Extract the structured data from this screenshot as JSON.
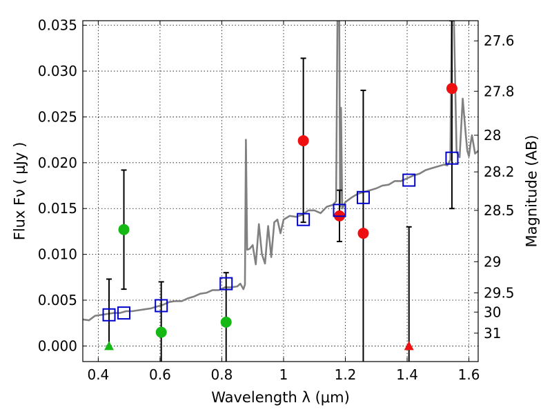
{
  "chart_data": {
    "type": "scatter",
    "xlabel": "Wavelength  λ (μm)",
    "ylabel_left": "Flux  Fν  ( μJy )",
    "ylabel_right": "Magnitude (AB)",
    "xlim": [
      0.35,
      1.63
    ],
    "ylim": [
      -0.0017,
      0.0355
    ],
    "grid": true,
    "x_ticks": [
      0.4,
      0.6,
      0.8,
      1.0,
      1.2,
      1.4,
      1.6
    ],
    "x_tick_labels": [
      "0.4",
      "0.6",
      "0.8",
      "1",
      "1.2",
      "1.4",
      "1.6"
    ],
    "y_ticks": [
      0.0,
      0.005,
      0.01,
      0.015,
      0.02,
      0.025,
      0.03,
      0.035
    ],
    "y_tick_labels": [
      "0.000",
      "0.005",
      "0.010",
      "0.015",
      "0.020",
      "0.025",
      "0.030",
      "0.035"
    ],
    "right_ticks": [
      {
        "label": "27.6",
        "flux": 0.0333
      },
      {
        "label": "27.8",
        "flux": 0.0278
      },
      {
        "label": "28",
        "flux": 0.023
      },
      {
        "label": "28.2",
        "flux": 0.019
      },
      {
        "label": "28.5",
        "flux": 0.0148
      },
      {
        "label": "29",
        "flux": 0.0092
      },
      {
        "label": "29.5",
        "flux": 0.0058
      },
      {
        "label": "30",
        "flux": 0.0037
      },
      {
        "label": "31",
        "flux": 0.0014
      }
    ],
    "model_spectrum": {
      "name": "model SED",
      "color": "#808080",
      "x": [
        0.35,
        0.37,
        0.39,
        0.41,
        0.43,
        0.45,
        0.47,
        0.49,
        0.51,
        0.53,
        0.55,
        0.57,
        0.59,
        0.61,
        0.63,
        0.65,
        0.67,
        0.69,
        0.71,
        0.73,
        0.75,
        0.77,
        0.79,
        0.81,
        0.83,
        0.85,
        0.86,
        0.87,
        0.875,
        0.878,
        0.882,
        0.89,
        0.9,
        0.91,
        0.92,
        0.93,
        0.94,
        0.95,
        0.96,
        0.97,
        0.98,
        0.99,
        1.0,
        1.02,
        1.04,
        1.06,
        1.08,
        1.1,
        1.12,
        1.14,
        1.16,
        1.17,
        1.175,
        1.18,
        1.183,
        1.186,
        1.19,
        1.2,
        1.22,
        1.24,
        1.26,
        1.28,
        1.3,
        1.32,
        1.34,
        1.36,
        1.38,
        1.4,
        1.42,
        1.44,
        1.46,
        1.48,
        1.5,
        1.52,
        1.53,
        1.54,
        1.545,
        1.55,
        1.56,
        1.57,
        1.58,
        1.59,
        1.595,
        1.6,
        1.605,
        1.61,
        1.62,
        1.63
      ],
      "y": [
        0.0029,
        0.0028,
        0.0033,
        0.0034,
        0.0035,
        0.0036,
        0.0036,
        0.0038,
        0.0038,
        0.0039,
        0.004,
        0.0041,
        0.0043,
        0.0045,
        0.0048,
        0.0049,
        0.0049,
        0.0052,
        0.0054,
        0.0057,
        0.0058,
        0.0061,
        0.0061,
        0.0064,
        0.0064,
        0.0065,
        0.0068,
        0.0062,
        0.0067,
        0.0225,
        0.0105,
        0.0106,
        0.011,
        0.0089,
        0.0133,
        0.01,
        0.009,
        0.0131,
        0.0097,
        0.0135,
        0.0138,
        0.0123,
        0.0138,
        0.0142,
        0.0141,
        0.0143,
        0.0148,
        0.0148,
        0.0145,
        0.0152,
        0.0154,
        0.0158,
        0.038,
        0.038,
        0.0152,
        0.026,
        0.015,
        0.0157,
        0.0162,
        0.0166,
        0.0168,
        0.017,
        0.0172,
        0.0175,
        0.0176,
        0.018,
        0.018,
        0.0183,
        0.0186,
        0.0188,
        0.0192,
        0.0194,
        0.0196,
        0.0198,
        0.0197,
        0.0203,
        0.038,
        0.038,
        0.0212,
        0.0206,
        0.027,
        0.023,
        0.0213,
        0.0207,
        0.022,
        0.023,
        0.021,
        0.0213
      ]
    },
    "error_bars": [
      {
        "x": 0.435,
        "low": 0.0,
        "high": 0.0073
      },
      {
        "x": 0.483,
        "low": 0.0062,
        "high": 0.0192
      },
      {
        "x": 0.604,
        "low": -0.0017,
        "high": 0.007
      },
      {
        "x": 0.814,
        "low": -0.0017,
        "high": 0.008
      },
      {
        "x": 1.064,
        "low": 0.0135,
        "high": 0.0314
      },
      {
        "x": 1.181,
        "low": 0.0114,
        "high": 0.017
      },
      {
        "x": 1.258,
        "low": -0.0017,
        "high": 0.0279
      },
      {
        "x": 1.406,
        "low": -0.0017,
        "high": 0.013
      },
      {
        "x": 1.545,
        "low": 0.015,
        "high": 0.0355
      }
    ],
    "series": [
      {
        "name": "green detections",
        "marker": "circle",
        "color": "#16b816",
        "x": [
          0.483,
          0.604,
          0.814
        ],
        "y": [
          0.0127,
          0.0015,
          0.0026
        ]
      },
      {
        "name": "green upper limit",
        "marker": "triangle",
        "color": "#16b816",
        "x": [
          0.435
        ],
        "y": [
          0.0
        ]
      },
      {
        "name": "red detections",
        "marker": "circle",
        "color": "#ee1010",
        "x": [
          1.064,
          1.181,
          1.258,
          1.545
        ],
        "y": [
          0.0224,
          0.0142,
          0.0123,
          0.0281
        ]
      },
      {
        "name": "red upper limit",
        "marker": "triangle",
        "color": "#ee1010",
        "x": [
          1.406
        ],
        "y": [
          0.0
        ]
      },
      {
        "name": "model photometry",
        "marker": "open-square",
        "color": "#0000cc",
        "x": [
          0.435,
          0.483,
          0.604,
          0.814,
          1.064,
          1.181,
          1.258,
          1.406,
          1.545
        ],
        "y": [
          0.0034,
          0.0036,
          0.0044,
          0.0068,
          0.0138,
          0.0148,
          0.0162,
          0.0181,
          0.0205
        ]
      }
    ]
  }
}
